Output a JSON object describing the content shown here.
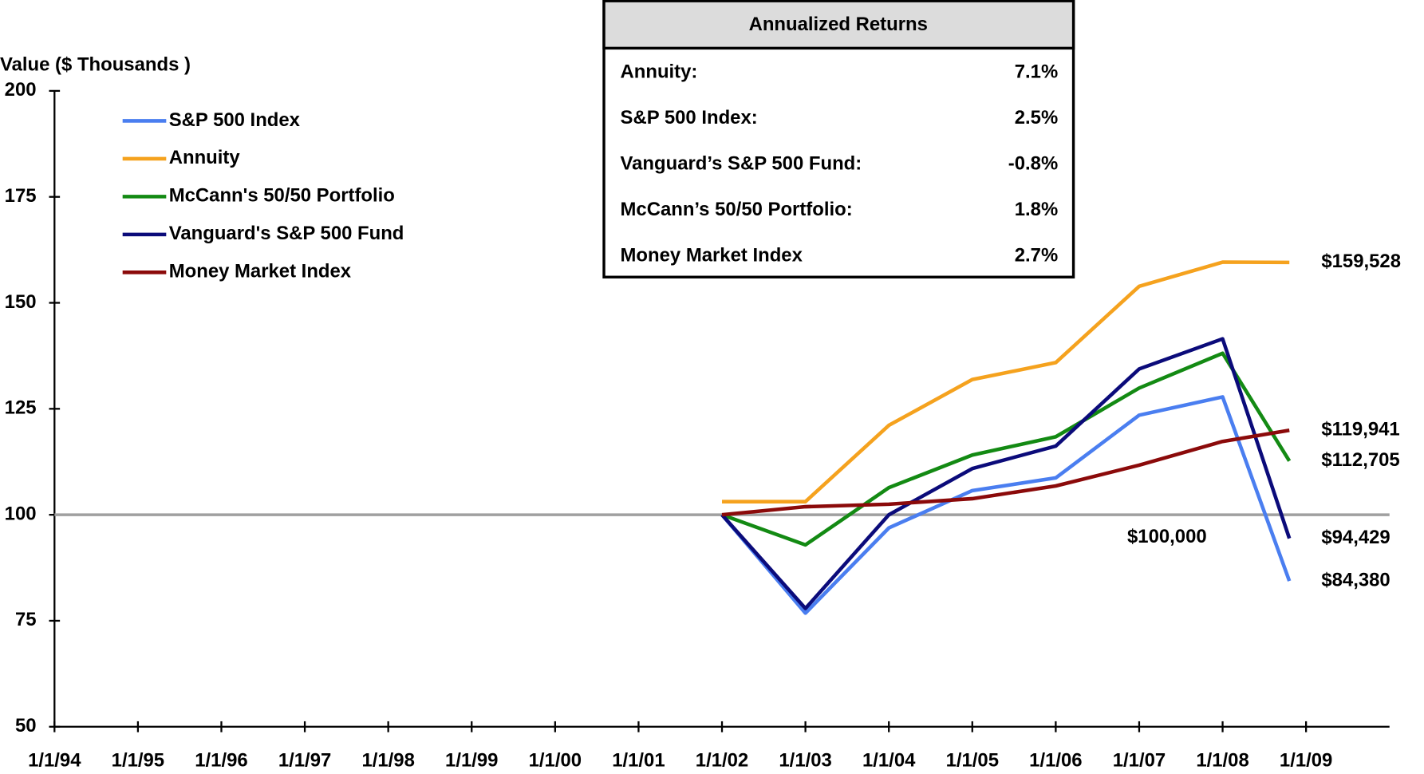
{
  "chart_data": {
    "type": "line",
    "y_axis_label": "Value ($ Thousands )",
    "xlim": [
      1994,
      2010
    ],
    "xticks": [
      {
        "value": 1994,
        "label": "1/1/94"
      },
      {
        "value": 1995,
        "label": "1/1/95"
      },
      {
        "value": 1996,
        "label": "1/1/96"
      },
      {
        "value": 1997,
        "label": "1/1/97"
      },
      {
        "value": 1998,
        "label": "1/1/98"
      },
      {
        "value": 1999,
        "label": "1/1/99"
      },
      {
        "value": 2000,
        "label": "1/1/00"
      },
      {
        "value": 2001,
        "label": "1/1/01"
      },
      {
        "value": 2002,
        "label": "1/1/02"
      },
      {
        "value": 2003,
        "label": "1/1/03"
      },
      {
        "value": 2004,
        "label": "1/1/04"
      },
      {
        "value": 2005,
        "label": "1/1/05"
      },
      {
        "value": 2006,
        "label": "1/1/06"
      },
      {
        "value": 2007,
        "label": "1/1/07"
      },
      {
        "value": 2008,
        "label": "1/1/08"
      },
      {
        "value": 2009,
        "label": "1/1/09"
      }
    ],
    "ylim": [
      50,
      200
    ],
    "yticks": [
      50,
      75,
      100,
      125,
      150,
      175,
      200
    ],
    "x": [
      2002,
      2003,
      2004,
      2005,
      2006,
      2007,
      2008,
      2008.8
    ],
    "series": [
      {
        "name": "S&P 500 Index",
        "color": "#4a7ef0",
        "values": [
          100,
          76.8,
          96.9,
          105.7,
          108.7,
          123.5,
          127.8,
          84.38
        ],
        "value_labels": [
          null,
          null,
          null,
          null,
          null,
          null,
          null,
          "$84,380"
        ]
      },
      {
        "name": "Annuity",
        "color": "#f5a21e",
        "values": [
          103.1,
          103.1,
          121.1,
          131.9,
          135.9,
          153.9,
          159.6,
          159.528
        ],
        "value_labels": [
          null,
          null,
          null,
          null,
          null,
          null,
          null,
          "$159,528"
        ]
      },
      {
        "name": "McCann's 50/50 Portfolio",
        "color": "#138a13",
        "values": [
          100,
          92.9,
          106.4,
          114.1,
          118.4,
          129.9,
          138.1,
          112.705
        ],
        "value_labels": [
          null,
          null,
          null,
          null,
          null,
          null,
          null,
          "$112,705"
        ]
      },
      {
        "name": "Vanguard's S&P 500 Fund",
        "color": "#0b0b7a",
        "values": [
          100,
          77.9,
          100,
          110.9,
          116.2,
          134.4,
          141.5,
          94.429
        ],
        "value_labels": [
          null,
          null,
          null,
          null,
          null,
          null,
          null,
          "$94,429"
        ]
      },
      {
        "name": "Money Market Index",
        "color": "#8b0a0a",
        "values": [
          100,
          101.9,
          102.5,
          103.8,
          106.8,
          111.7,
          117.3,
          119.941
        ],
        "value_labels": [
          null,
          null,
          null,
          null,
          null,
          null,
          null,
          "$119,941"
        ]
      }
    ],
    "reference_line": {
      "value": 100,
      "label": "$100,000",
      "color": "#a0a0a0"
    },
    "annotation_table": {
      "title": "Annualized Returns",
      "rows": [
        {
          "label": "Annuity:",
          "value": "7.1%",
          "color": "#f5a21e"
        },
        {
          "label": "S&P 500 Index:",
          "value": "2.5%",
          "color": "#1a6af0"
        },
        {
          "label": "Vanguard’s S&P 500 Fund:",
          "value": "-0.8%",
          "color": "#0b0b7a"
        },
        {
          "label": "McCann’s 50/50 Portfolio:",
          "value": "1.8%",
          "color": "#138a13"
        },
        {
          "label": "Money Market Index",
          "value": "2.7%",
          "color": "#a00f2a"
        }
      ]
    },
    "legend": "upper left"
  }
}
